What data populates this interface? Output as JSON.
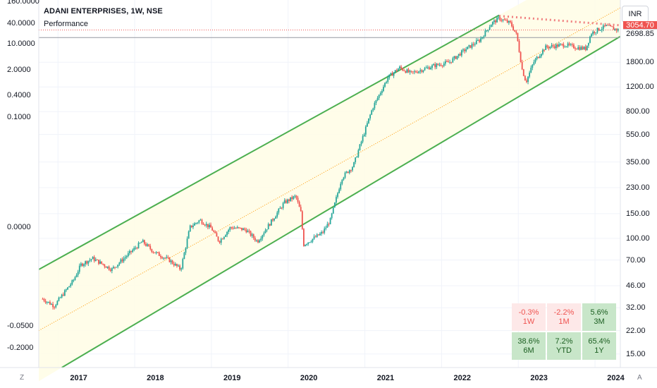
{
  "header": {
    "title": "ADANI ENTERPRISES, 1W, NSE",
    "subtitle": "Performance",
    "currency": "INR"
  },
  "left_scale": [
    "160.0000",
    "40.0000",
    "10.0000",
    "2.0000",
    "0.4000",
    "0.1000",
    "0.0000",
    "-0.0500",
    "-0.2000"
  ],
  "price_tags": {
    "last": "3054.70",
    "line": "2698.85"
  },
  "corner": {
    "left": "Z",
    "right": "A"
  },
  "colors": {
    "up": "#26a69a",
    "down": "#ef5350",
    "channel": "#4caf50",
    "channel_fill": "#fffde7",
    "trend": "#f08080",
    "last_line": "#ef5350",
    "hline": "#9598a1"
  },
  "performance": [
    {
      "value": "-0.3%",
      "period": "1W",
      "sentiment": "negative"
    },
    {
      "value": "-2.2%",
      "period": "1M",
      "sentiment": "negative"
    },
    {
      "value": "5.6%",
      "period": "3M",
      "sentiment": "positive"
    },
    {
      "value": "38.6%",
      "period": "6M",
      "sentiment": "positive"
    },
    {
      "value": "7.2%",
      "period": "YTD",
      "sentiment": "positive"
    },
    {
      "value": "65.4%",
      "period": "1Y",
      "sentiment": "positive"
    }
  ],
  "chart_data": {
    "type": "candlestick",
    "scale": "log",
    "ylim": [
      12,
      5000
    ],
    "xlim": [
      2016.75,
      2024.33
    ],
    "x_ticks": [
      "2017",
      "2018",
      "2019",
      "2020",
      "2021",
      "2022",
      "2023",
      "2024"
    ],
    "y_ticks": [
      "1800.00",
      "1200.00",
      "800.00",
      "550.00",
      "350.00",
      "230.00",
      "150.00",
      "100.00",
      "70.00",
      "46.00",
      "32.00",
      "22.00",
      "15.00"
    ],
    "anchors": [
      [
        2016.8,
        37
      ],
      [
        2016.95,
        33
      ],
      [
        2017.2,
        50
      ],
      [
        2017.3,
        65
      ],
      [
        2017.45,
        72
      ],
      [
        2017.7,
        60
      ],
      [
        2017.95,
        80
      ],
      [
        2018.1,
        95
      ],
      [
        2018.25,
        80
      ],
      [
        2018.45,
        70
      ],
      [
        2018.6,
        60
      ],
      [
        2018.72,
        120
      ],
      [
        2018.85,
        135
      ],
      [
        2019.0,
        118
      ],
      [
        2019.1,
        95
      ],
      [
        2019.25,
        120
      ],
      [
        2019.45,
        115
      ],
      [
        2019.6,
        95
      ],
      [
        2019.75,
        125
      ],
      [
        2019.95,
        180
      ],
      [
        2020.1,
        200
      ],
      [
        2020.17,
        150
      ],
      [
        2020.2,
        90
      ],
      [
        2020.45,
        110
      ],
      [
        2020.55,
        135
      ],
      [
        2020.7,
        270
      ],
      [
        2020.85,
        330
      ],
      [
        2021.1,
        850
      ],
      [
        2021.3,
        1400
      ],
      [
        2021.45,
        1650
      ],
      [
        2021.6,
        1500
      ],
      [
        2021.9,
        1700
      ],
      [
        2022.1,
        1800
      ],
      [
        2022.3,
        2200
      ],
      [
        2022.5,
        2600
      ],
      [
        2022.65,
        3400
      ],
      [
        2022.75,
        3700
      ],
      [
        2022.9,
        3400
      ],
      [
        2022.98,
        2800
      ],
      [
        2023.05,
        1600
      ],
      [
        2023.1,
        1300
      ],
      [
        2023.2,
        1800
      ],
      [
        2023.35,
        2300
      ],
      [
        2023.6,
        2400
      ],
      [
        2023.75,
        2300
      ],
      [
        2023.88,
        2250
      ],
      [
        2023.95,
        2900
      ],
      [
        2024.05,
        3100
      ],
      [
        2024.15,
        3250
      ],
      [
        2024.3,
        3054.7
      ]
    ],
    "channel": {
      "upper": [
        [
          2016.75,
          60
        ],
        [
          2022.75,
          3900
        ]
      ],
      "lower": [
        [
          2017.05,
          12
        ],
        [
          2024.33,
          2750
        ]
      ],
      "mid": [
        [
          2016.75,
          22
        ],
        [
          2024.33,
          4400
        ]
      ]
    },
    "trendline": [
      [
        2022.75,
        3850
      ],
      [
        2024.33,
        3300
      ]
    ],
    "last_price": 3054.7,
    "hline": 2698.85
  }
}
